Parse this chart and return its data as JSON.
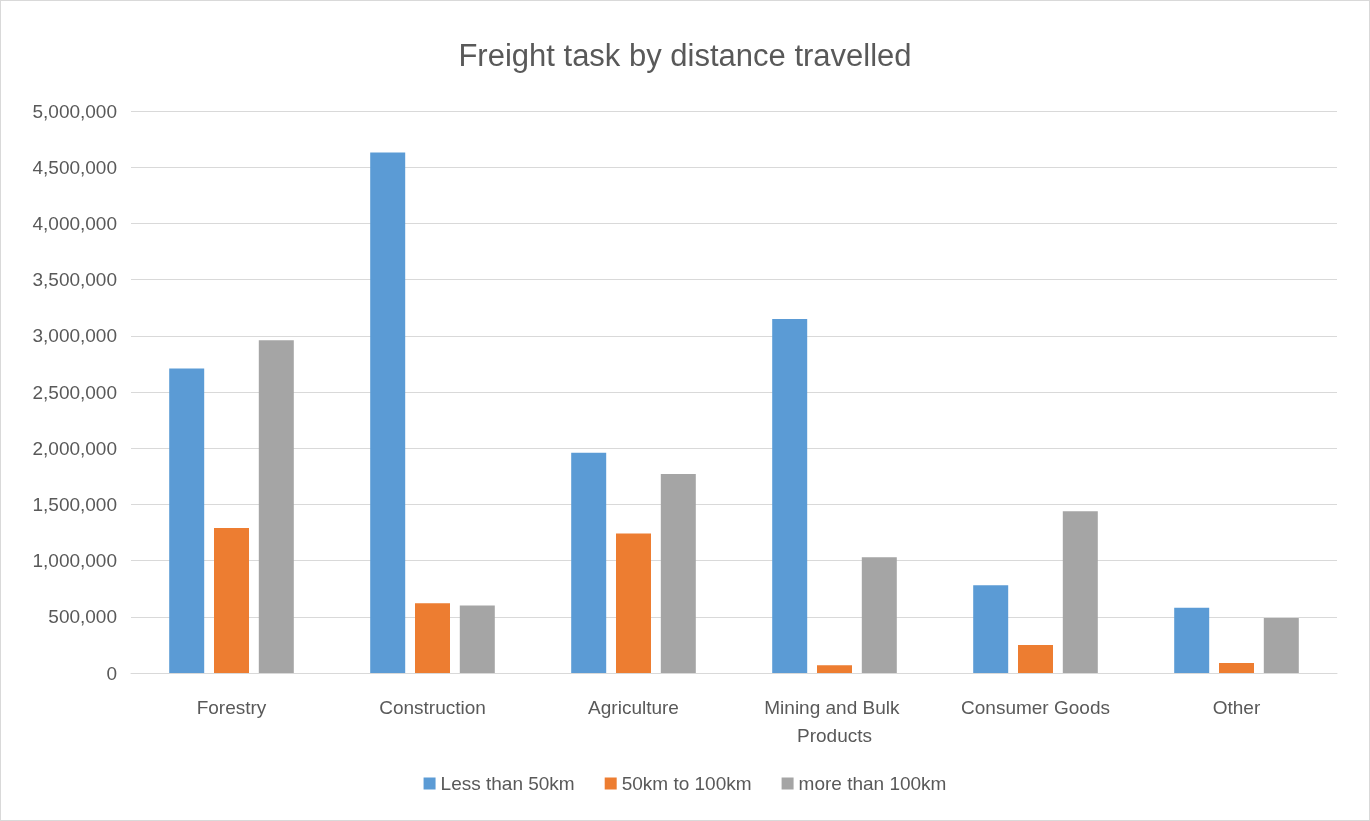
{
  "chart_data": {
    "type": "bar",
    "title": "Freight task by distance travelled",
    "categories": [
      "Forestry",
      "Construction",
      "Agriculture",
      "Mining and Bulk Products",
      "Consumer Goods",
      "Other"
    ],
    "series": [
      {
        "name": "Less than 50km",
        "color": "#5b9bd5",
        "values": [
          2710000,
          4630000,
          1960000,
          3150000,
          780000,
          580000
        ]
      },
      {
        "name": "50km to 100km",
        "color": "#ed7d31",
        "values": [
          1290000,
          620000,
          1240000,
          70000,
          250000,
          90000
        ]
      },
      {
        "name": "more than 100km",
        "color": "#a5a5a5",
        "values": [
          2960000,
          600000,
          1770000,
          1030000,
          1440000,
          490000
        ]
      }
    ],
    "ylim": [
      0,
      5000000
    ],
    "yticks": [
      0,
      {
        "value": 500000,
        "label": "500,000"
      },
      {
        "value": 1000000,
        "label": "1,000,000"
      },
      {
        "value": 1500000,
        "label": "1,500,000"
      },
      {
        "value": 2000000,
        "label": "2,000,000"
      },
      {
        "value": 2500000,
        "label": "2,500,000"
      },
      {
        "value": 3000000,
        "label": "3,000,000"
      },
      {
        "value": 3500000,
        "label": "3,500,000"
      },
      {
        "value": 4000000,
        "label": "4,000,000"
      },
      {
        "value": 4500000,
        "label": "4,500,000"
      },
      {
        "value": 5000000,
        "label": "5,000,000"
      }
    ],
    "grid": "y",
    "legend": "bottom"
  }
}
